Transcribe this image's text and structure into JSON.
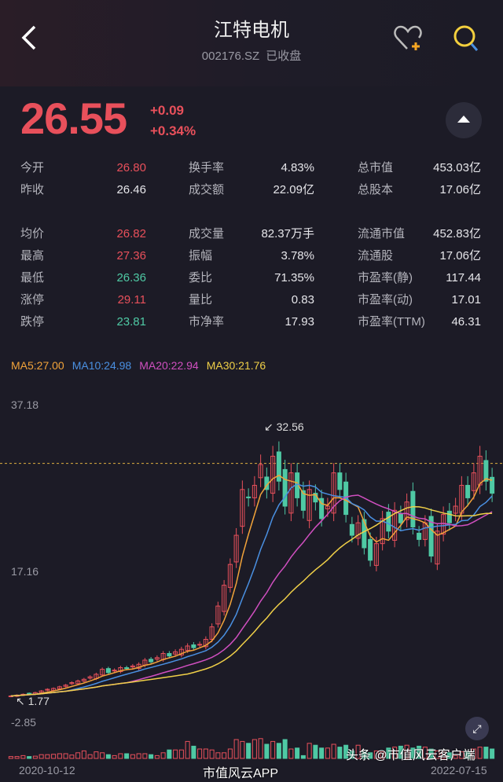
{
  "header": {
    "title": "江特电机",
    "code": "002176.SZ",
    "status": "已收盘"
  },
  "quote": {
    "price": "26.55",
    "change": "+0.09",
    "change_pct": "+0.34%"
  },
  "stats": [
    [
      {
        "label": "今开",
        "value": "26.80",
        "color": "r"
      },
      {
        "label": "换手率",
        "value": "4.83%"
      },
      {
        "label": "总市值",
        "value": "453.03亿"
      }
    ],
    [
      {
        "label": "昨收",
        "value": "26.46"
      },
      {
        "label": "成交额",
        "value": "22.09亿"
      },
      {
        "label": "总股本",
        "value": "17.06亿"
      }
    ],
    null,
    [
      {
        "label": "均价",
        "value": "26.82",
        "color": "r"
      },
      {
        "label": "成交量",
        "value": "82.37万手"
      },
      {
        "label": "流通市值",
        "value": "452.83亿"
      }
    ],
    [
      {
        "label": "最高",
        "value": "27.36",
        "color": "r"
      },
      {
        "label": "振幅",
        "value": "3.78%"
      },
      {
        "label": "流通股",
        "value": "17.06亿"
      }
    ],
    [
      {
        "label": "最低",
        "value": "26.36",
        "color": "g"
      },
      {
        "label": "委比",
        "value": "71.35%"
      },
      {
        "label": "市盈率(静)",
        "value": "117.44"
      }
    ],
    [
      {
        "label": "涨停",
        "value": "29.11",
        "color": "r"
      },
      {
        "label": "量比",
        "value": "0.83"
      },
      {
        "label": "市盈率(动)",
        "value": "17.01"
      }
    ],
    [
      {
        "label": "跌停",
        "value": "23.81",
        "color": "g"
      },
      {
        "label": "市净率",
        "value": "17.93"
      },
      {
        "label": "市盈率(TTM)",
        "value": "46.31"
      }
    ]
  ],
  "ma_legend": [
    {
      "label": "MA5:27.00",
      "color": "#f2a33a"
    },
    {
      "label": "MA10:24.98",
      "color": "#4a90e2"
    },
    {
      "label": "MA20:22.94",
      "color": "#d04fc0"
    },
    {
      "label": "MA30:21.76",
      "color": "#f0d048"
    }
  ],
  "colors": {
    "up": "#e8505b",
    "down": "#4fc9a4",
    "bg": "#1c1b26"
  },
  "chart_data": {
    "type": "candlestick",
    "y_ticks": [
      "37.18",
      "17.16",
      "-2.85"
    ],
    "ylim": [
      -2.85,
      37.18
    ],
    "max_label": "32.56",
    "min_label": "1.77",
    "x_labels": [
      "2020-10-12",
      "2022-07-15"
    ],
    "closes": [
      2.2,
      2.3,
      2.4,
      2.5,
      2.6,
      2.8,
      3.0,
      3.1,
      3.3,
      3.5,
      3.8,
      4.0,
      4.2,
      4.5,
      4.8,
      5.4,
      5.0,
      5.3,
      5.6,
      5.5,
      5.8,
      6.0,
      6.5,
      6.3,
      6.8,
      7.3,
      7.0,
      7.5,
      7.8,
      8.2,
      8.0,
      8.4,
      9.0,
      10.5,
      13.0,
      15.5,
      18.0,
      21.5,
      27.0,
      26.0,
      27.5,
      30.0,
      27.0,
      31.0,
      28.0,
      25.0,
      29.0,
      26.0,
      24.5,
      27.0,
      25.5,
      23.5,
      25.0,
      29.0,
      27.0,
      24.0,
      21.5,
      23.0,
      20.0,
      18.5,
      20.5,
      23.5,
      22.0,
      24.5,
      23.0,
      25.5,
      22.5,
      21.0,
      23.0,
      19.0,
      22.0,
      24.0,
      23.0,
      25.0,
      27.5,
      26.0,
      29.0,
      31.0,
      28.0,
      26.55
    ],
    "volumes": [
      1,
      1,
      1.5,
      1,
      1.2,
      2,
      2,
      2.2,
      2.5,
      2.5,
      1.8,
      3,
      4,
      2,
      3.5,
      3,
      2,
      1.5,
      2.5,
      2.5,
      2,
      2.5,
      2.5,
      2,
      1.5,
      3,
      4.5,
      4.5,
      4.5,
      9,
      6.5,
      5,
      5,
      4.5,
      3,
      3,
      5,
      10,
      9,
      8,
      10,
      10.5,
      7.5,
      9,
      8,
      10,
      5,
      5.5,
      1.5,
      8,
      7,
      5.5,
      5.5,
      7.5,
      6,
      7,
      4,
      7,
      3.5,
      3,
      4,
      3.5,
      5.5,
      6,
      6.5,
      7,
      5.5,
      6.5,
      6,
      5,
      4,
      3.5,
      3,
      1.5,
      3.5,
      3.5,
      5,
      6,
      6,
      5
    ]
  },
  "chart_ui": {
    "expand_icon": "expand-icon"
  },
  "watermarks": {
    "weibo": "市值风云APP",
    "toutiao": "头条 @市值风云客户端"
  }
}
